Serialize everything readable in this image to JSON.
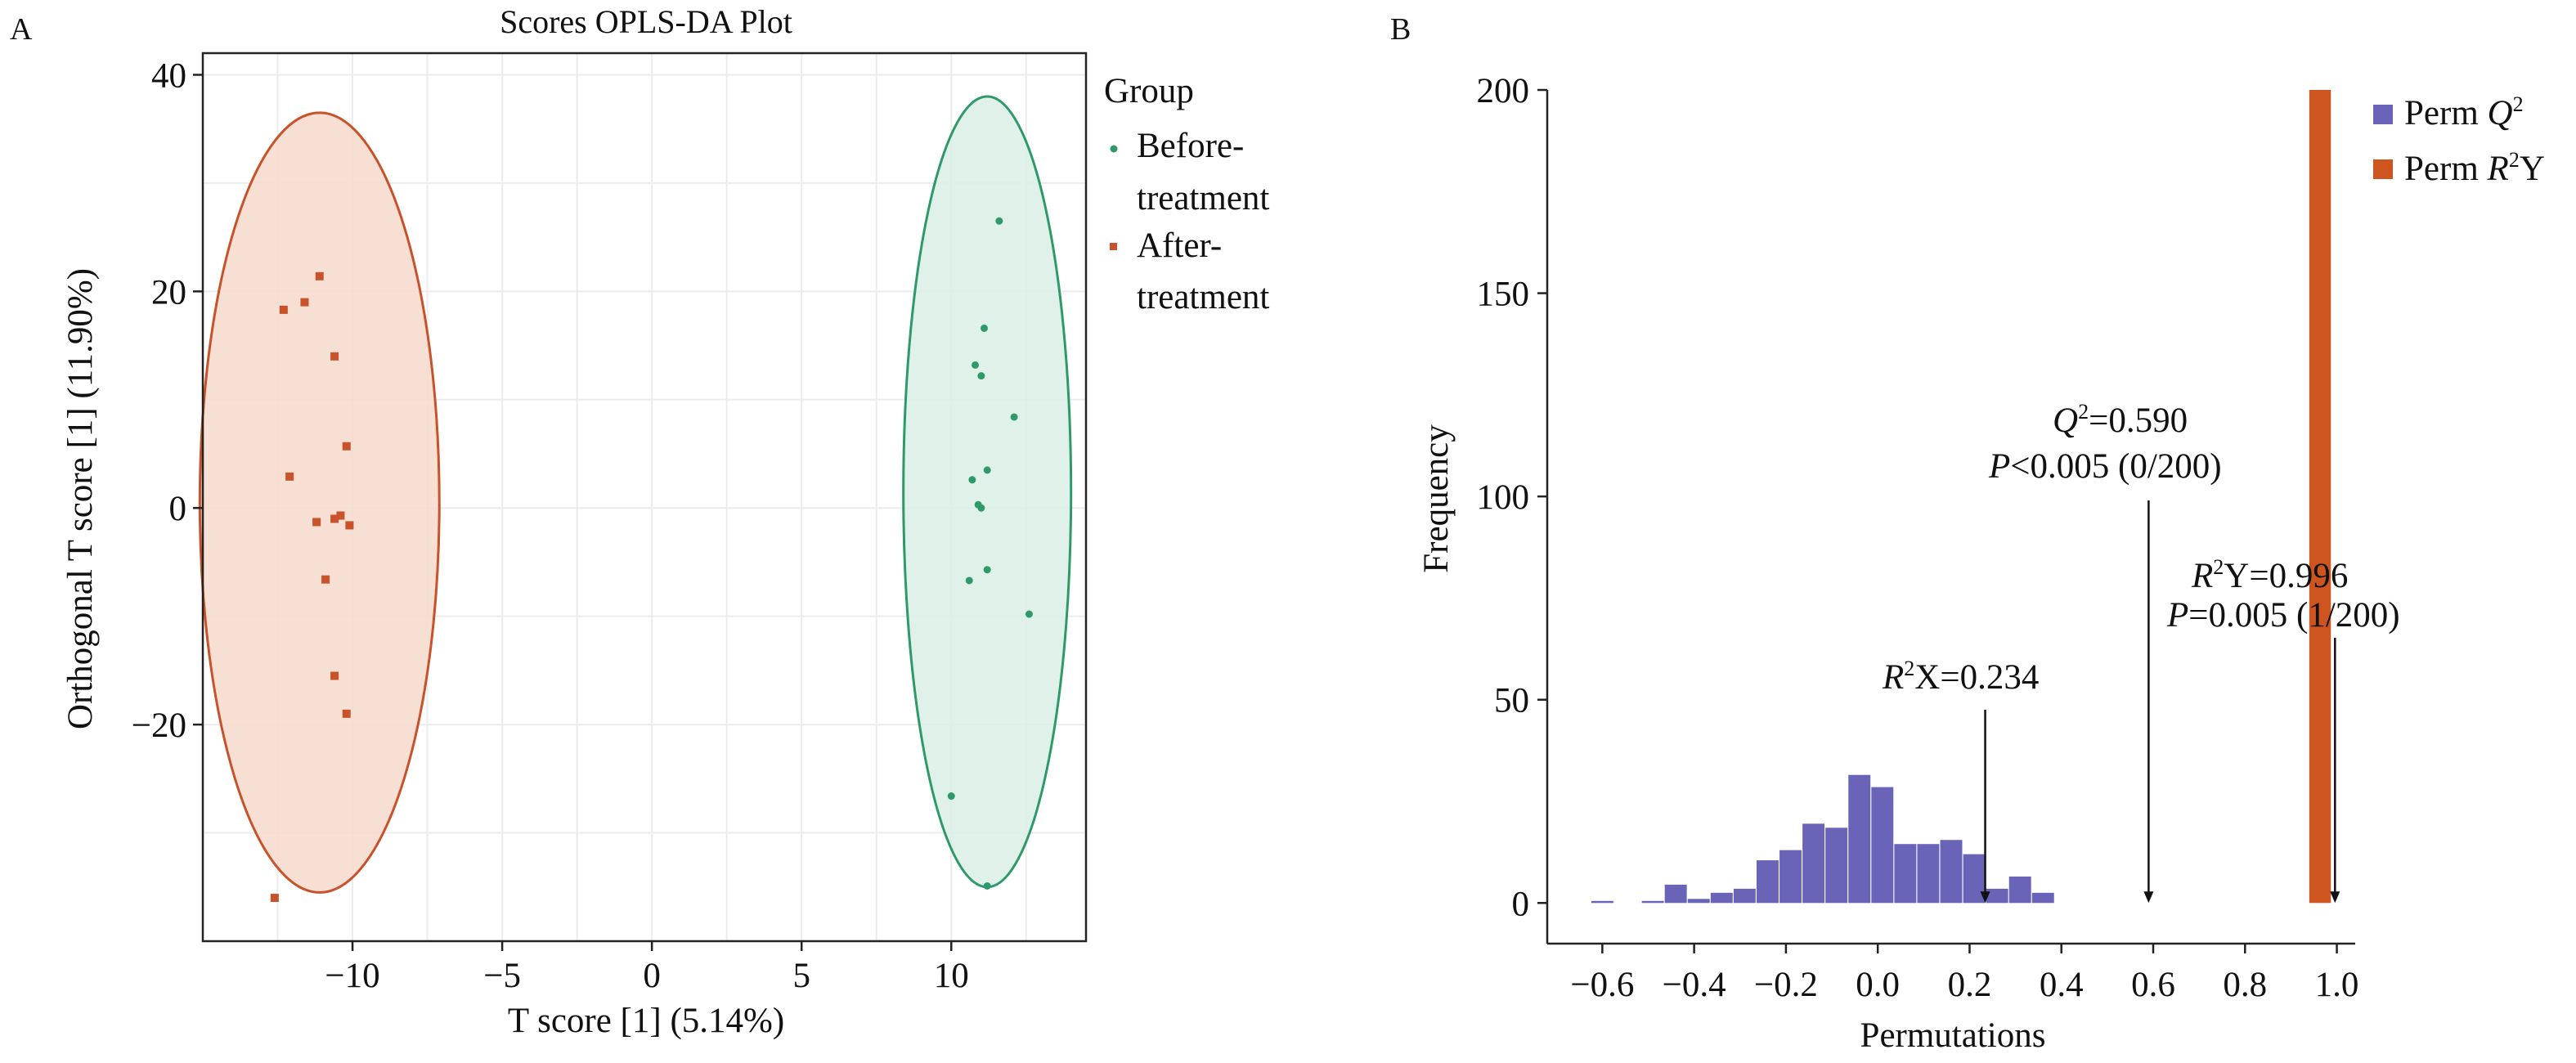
{
  "figure": {
    "panel_a_label": "A",
    "panel_b_label": "B"
  },
  "colors": {
    "before": "#2e9a6a",
    "after": "#c8522a",
    "before_fill": "#dcefe5",
    "after_fill": "#f7dccf",
    "perm_q2": "#6a64b8",
    "perm_r2y": "#cf5520",
    "grid": "#ececec"
  },
  "chart_data": [
    {
      "type": "scatter",
      "title": "Scores OPLS-DA Plot",
      "xlabel": "T score [1] (5.14%)",
      "ylabel": "Orthogonal T score [1] (11.90%)",
      "xlim": [
        -15,
        14.5
      ],
      "ylim": [
        -40,
        42
      ],
      "xticks": [
        -10,
        -5,
        0,
        5,
        10
      ],
      "xtick_labels": [
        "−10",
        "−5",
        "0",
        "5",
        "10"
      ],
      "yticks": [
        -20,
        0,
        20,
        40
      ],
      "ytick_labels": [
        "−20",
        "0",
        "20",
        "40"
      ],
      "legend": {
        "title": "Group",
        "entries": [
          {
            "line1": "Before-",
            "line2": "treatment",
            "series": "Before-treatment"
          },
          {
            "line1": "After-",
            "line2": "treatment",
            "series": "After-treatment"
          }
        ],
        "position": "right"
      },
      "series": [
        {
          "name": "Before-treatment",
          "marker": "circle",
          "points": [
            [
              11.6,
              26.5
            ],
            [
              11.1,
              16.6
            ],
            [
              10.8,
              13.2
            ],
            [
              11.0,
              12.2
            ],
            [
              12.1,
              8.4
            ],
            [
              11.2,
              3.5
            ],
            [
              10.7,
              2.6
            ],
            [
              10.9,
              0.3
            ],
            [
              11.0,
              0.0
            ],
            [
              11.2,
              -5.7
            ],
            [
              10.6,
              -6.7
            ],
            [
              12.6,
              -9.8
            ],
            [
              10.0,
              -26.6
            ],
            [
              11.2,
              -34.9
            ]
          ],
          "ellipse": {
            "center": [
              11.2,
              1.5
            ],
            "rx": 2.8,
            "ry": 36.5
          }
        },
        {
          "name": "After-treatment",
          "marker": "square",
          "points": [
            [
              -11.1,
              21.4
            ],
            [
              -12.3,
              18.3
            ],
            [
              -11.6,
              19.0
            ],
            [
              -10.6,
              14.0
            ],
            [
              -10.2,
              5.7
            ],
            [
              -12.1,
              2.9
            ],
            [
              -10.4,
              -0.7
            ],
            [
              -10.6,
              -1.0
            ],
            [
              -10.1,
              -1.6
            ],
            [
              -11.2,
              -1.3
            ],
            [
              -10.9,
              -6.6
            ],
            [
              -10.6,
              -15.5
            ],
            [
              -10.2,
              -19.0
            ],
            [
              -12.6,
              -36.0
            ]
          ],
          "ellipse": {
            "center": [
              -11.1,
              0.5
            ],
            "rx": 4.0,
            "ry": 36.0
          }
        }
      ]
    },
    {
      "type": "bar",
      "xlabel": "Permutations",
      "ylabel": "Frequency",
      "xlim": [
        -0.72,
        1.04
      ],
      "ylim": [
        -10,
        200
      ],
      "xticks": [
        -0.6,
        -0.4,
        -0.2,
        0.0,
        0.2,
        0.4,
        0.6,
        0.8,
        1.0
      ],
      "xtick_labels": [
        "−0.6",
        "−0.4",
        "−0.2",
        "0.0",
        "0.2",
        "0.4",
        "0.6",
        "0.8",
        "1.0"
      ],
      "yticks": [
        0,
        50,
        100,
        150,
        200
      ],
      "ytick_labels": [
        "0",
        "50",
        "100",
        "150",
        "200"
      ],
      "bin_width": 0.048,
      "legend": {
        "position": "top-right",
        "entries": [
          {
            "prefix": "Perm ",
            "sym": "Q",
            "sup": "2",
            "suffix": "",
            "series": "Perm Q2"
          },
          {
            "prefix": "Perm ",
            "sym": "R",
            "sup": "2",
            "suffix": "Y",
            "series": "Perm R2Y"
          }
        ]
      },
      "series": [
        {
          "name": "Perm Q2",
          "bin_centers": [
            -0.6,
            -0.49,
            -0.44,
            -0.39,
            -0.34,
            -0.29,
            -0.24,
            -0.19,
            -0.14,
            -0.09,
            -0.04,
            0.01,
            0.06,
            0.11,
            0.16,
            0.21,
            0.26,
            0.31,
            0.36,
            0.41
          ],
          "values": [
            0.5,
            0.5,
            4.5,
            1,
            2.5,
            3.5,
            10.5,
            13,
            19.5,
            18.5,
            31.5,
            28.5,
            14.5,
            14.5,
            15.5,
            12,
            3.5,
            6.5,
            2.5,
            0
          ]
        },
        {
          "name": "Perm R2Y",
          "bar_x": [
            0.94,
            0.987
          ],
          "value": 200
        }
      ],
      "annotations": [
        {
          "sym": "R",
          "sup": "2",
          "rest": "X=0.234",
          "line2": "",
          "x": 0.234
        },
        {
          "sym": "Q",
          "sup": "2",
          "rest": "=0.590",
          "line2_sym": "P",
          "line2_rest": "<0.005 (0/200)",
          "x": 0.59
        },
        {
          "sym": "R",
          "sup": "2",
          "rest": "Y=0.996",
          "line2_sym": "P",
          "line2_rest": "=0.005 (1/200)",
          "x": 0.996
        }
      ]
    }
  ]
}
